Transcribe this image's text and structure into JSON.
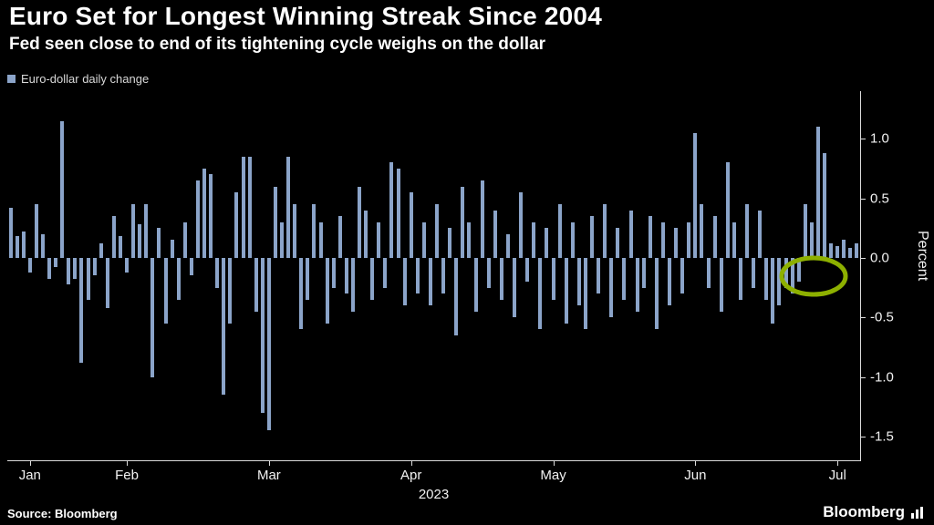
{
  "header": {
    "title": "Euro Set for Longest Winning Streak Since 2004",
    "subtitle": "Fed seen close to end of its tightening cycle weighs on the dollar"
  },
  "legend": {
    "label": "Euro-dollar daily change"
  },
  "footer": {
    "source": "Source: Bloomberg",
    "brand": "Bloomberg"
  },
  "colors": {
    "background": "#000000",
    "bar": "#8ba4c9",
    "axis": "#dcdcdc",
    "highlight": "#8db000"
  },
  "chart_data": {
    "type": "bar",
    "title": "Euro Set for Longest Winning Streak Since 2004",
    "subtitle": "Fed seen close to end of its tightening cycle weighs on the dollar",
    "series_label": "Euro-dollar daily change",
    "xlabel": "2023",
    "ylabel": "Percent",
    "x_year_label": "2023",
    "ylim": [
      -1.7,
      1.4
    ],
    "grid": false,
    "legend_position": "top-left",
    "y_ticks": [
      {
        "label": "1.0",
        "value": 1.0
      },
      {
        "label": "0.5",
        "value": 0.5
      },
      {
        "label": "0.0",
        "value": 0.0
      },
      {
        "label": "-0.5",
        "value": -0.5
      },
      {
        "label": "-1.0",
        "value": -1.0
      },
      {
        "label": "-1.5",
        "value": -1.5
      }
    ],
    "x_ticks": [
      {
        "label": "Jan",
        "index": 3
      },
      {
        "label": "Feb",
        "index": 18
      },
      {
        "label": "Mar",
        "index": 40
      },
      {
        "label": "Apr",
        "index": 62
      },
      {
        "label": "May",
        "index": 84
      },
      {
        "label": "Jun",
        "index": 106
      },
      {
        "label": "Jul",
        "index": 128
      }
    ],
    "values": [
      0.42,
      0.18,
      0.22,
      -0.12,
      0.45,
      0.2,
      -0.18,
      -0.08,
      1.15,
      -0.22,
      -0.18,
      -0.88,
      -0.35,
      -0.15,
      0.12,
      -0.42,
      0.35,
      0.18,
      -0.12,
      0.45,
      0.28,
      0.45,
      -1.0,
      0.25,
      -0.55,
      0.15,
      -0.35,
      0.3,
      -0.15,
      0.65,
      0.75,
      0.7,
      -0.25,
      -1.15,
      -0.55,
      0.55,
      0.85,
      0.85,
      -0.45,
      -1.3,
      -1.45,
      0.6,
      0.3,
      0.85,
      0.45,
      -0.6,
      -0.35,
      0.45,
      0.3,
      -0.55,
      -0.25,
      0.35,
      -0.3,
      -0.45,
      0.6,
      0.4,
      -0.35,
      0.3,
      -0.25,
      0.8,
      0.75,
      -0.4,
      0.55,
      -0.3,
      0.3,
      -0.4,
      0.45,
      -0.3,
      0.25,
      -0.65,
      0.6,
      0.3,
      -0.45,
      0.65,
      -0.25,
      0.4,
      -0.35,
      0.2,
      -0.5,
      0.55,
      -0.2,
      0.3,
      -0.6,
      0.25,
      -0.35,
      0.45,
      -0.55,
      0.3,
      -0.4,
      -0.6,
      0.35,
      -0.3,
      0.45,
      -0.5,
      0.25,
      -0.35,
      0.4,
      -0.45,
      -0.25,
      0.35,
      -0.6,
      0.3,
      -0.4,
      0.25,
      -0.3,
      0.3,
      1.05,
      0.45,
      -0.25,
      0.35,
      -0.45,
      0.8,
      0.3,
      -0.35,
      0.45,
      -0.25,
      0.4,
      -0.35,
      -0.55,
      -0.4,
      -0.25,
      -0.3,
      -0.2,
      0.45,
      0.3,
      1.1,
      0.88,
      0.12,
      0.1,
      0.15,
      0.08,
      0.12
    ],
    "annotation": {
      "type": "ellipse",
      "color": "#8db000",
      "note": "green circle highlighting the recent winning-streak dip near zero in late June / early July"
    }
  }
}
